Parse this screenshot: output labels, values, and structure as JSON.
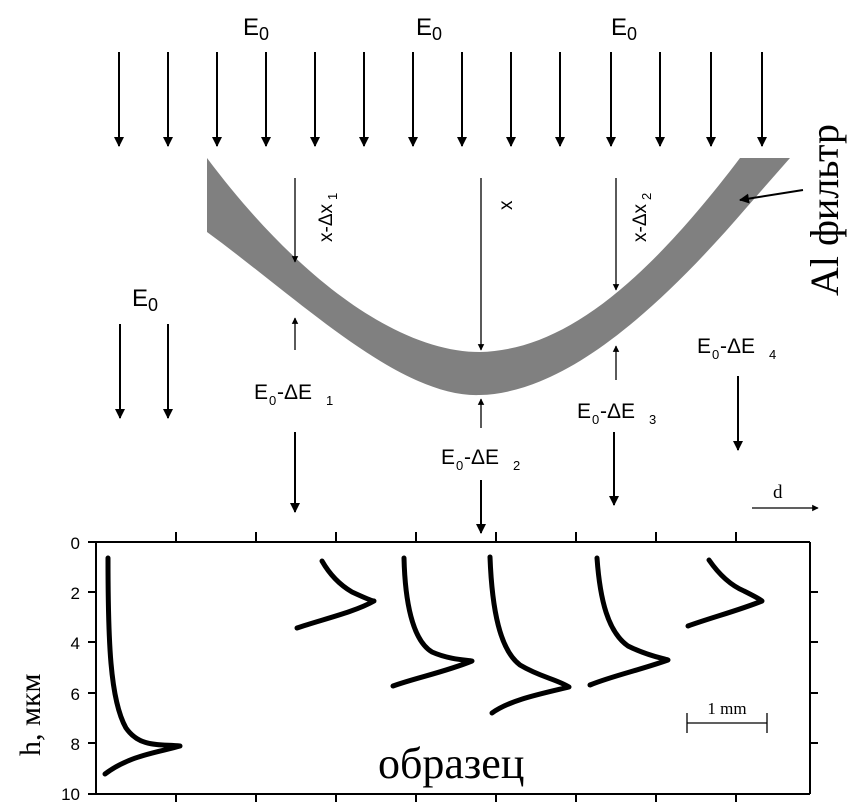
{
  "beam": {
    "incident_label": "E",
    "incident_sub": "0"
  },
  "filter": {
    "label": "Al фильтр"
  },
  "paths": [
    {
      "label": "x-Δx",
      "sub": "1"
    },
    {
      "label": "x",
      "sub": ""
    },
    {
      "label": "x-Δx",
      "sub": "2"
    }
  ],
  "energies": [
    {
      "prefix": "E",
      "sub0": "0",
      "mid": "-ΔE",
      "sub1": "1"
    },
    {
      "prefix": "E",
      "sub0": "0",
      "mid": "-ΔE",
      "sub1": "2"
    },
    {
      "prefix": "E",
      "sub0": "0",
      "mid": "-ΔE",
      "sub1": "3"
    },
    {
      "prefix": "E",
      "sub0": "0",
      "mid": "-ΔE",
      "sub1": "4"
    }
  ],
  "d_label": "d",
  "plot": {
    "ylabel": "h, мкм",
    "yticks": [
      "0",
      "2",
      "4",
      "6",
      "8",
      "10"
    ],
    "sample_label": "образец",
    "scale_label": "1 mm"
  },
  "colors": {
    "filter": "#808080",
    "ink": "#000000"
  }
}
